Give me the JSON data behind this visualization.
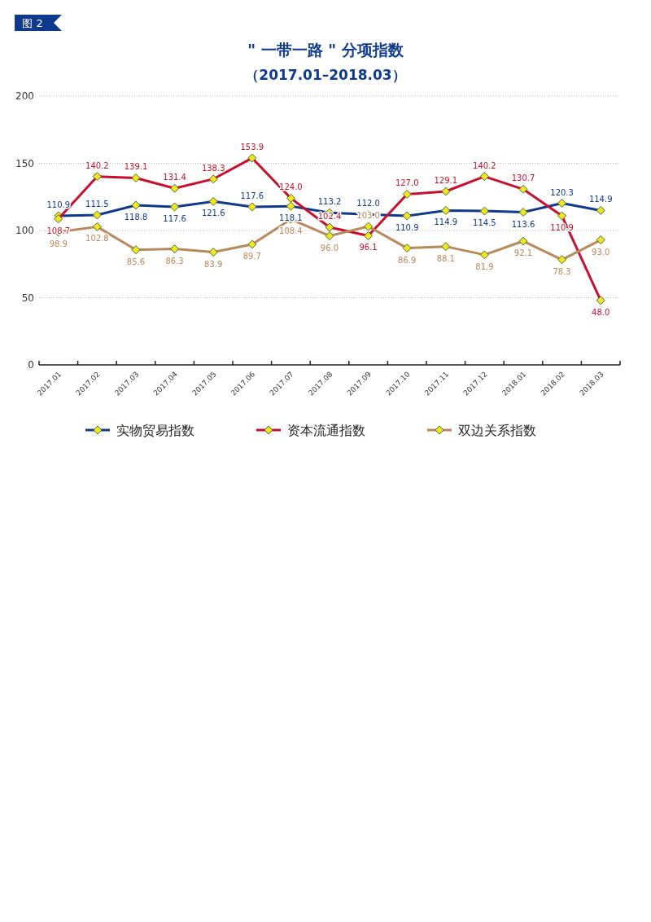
{
  "chart_data": {
    "type": "line",
    "title": "\" 一带一路 \" 分项指数",
    "subtitle": "（2017.01–2018.03）",
    "annotations": [
      "图 2"
    ],
    "categories": [
      "2017.01",
      "2017.02",
      "2017.03",
      "2017.04",
      "2017.05",
      "2017.06",
      "2017.07",
      "2017.08",
      "2017.09",
      "2017.10",
      "2017.11",
      "2017.12",
      "2018.01",
      "2018.02",
      "2018.03"
    ],
    "series": [
      {
        "name": "实物贸易指数",
        "color": "#0d3a8a",
        "values": [
          110.9,
          111.5,
          118.8,
          117.6,
          121.6,
          117.6,
          118.1,
          113.2,
          112.0,
          110.9,
          114.9,
          114.5,
          113.6,
          120.3,
          114.9
        ],
        "value_labels": [
          "110.9",
          "111.5",
          "118.8",
          "117.6",
          "121.6",
          "117.6",
          "118.1",
          "113.2",
          "112.0",
          "110.9",
          "114.9",
          "114.5",
          "113.6",
          "120.3",
          "114.9"
        ]
      },
      {
        "name": "资本流通指数",
        "color": "#c8102e",
        "values": [
          108.7,
          140.2,
          139.1,
          131.4,
          138.3,
          153.9,
          124.0,
          102.4,
          96.1,
          127.0,
          129.1,
          140.2,
          130.7,
          110.9,
          48.0
        ],
        "value_labels": [
          "108.7",
          "140.2",
          "139.1",
          "131.4",
          "138.3",
          "153.9",
          "124.0",
          "102.4",
          "96.1",
          "127.0",
          "129.1",
          "140.2",
          "130.7",
          "110.9",
          "48.0"
        ]
      },
      {
        "name": "双边关系指数",
        "color": "#b8895a",
        "values": [
          98.9,
          102.8,
          85.6,
          86.3,
          83.9,
          89.7,
          108.4,
          96.0,
          103.0,
          86.9,
          88.1,
          81.9,
          92.1,
          78.3,
          93.0
        ],
        "value_labels": [
          "98.9",
          "102.8",
          "85.6",
          "86.3",
          "83.9",
          "89.7",
          "108.4",
          "96.0",
          "103.0",
          "86.9",
          "88.1",
          "81.9",
          "92.1",
          "78.3",
          "93.0"
        ]
      }
    ],
    "ylim": [
      0,
      200
    ],
    "yticks": [
      0,
      50,
      100,
      150,
      200
    ],
    "grid": "y",
    "legend": "bottom",
    "marker": "diamond",
    "line_style": "solid"
  }
}
